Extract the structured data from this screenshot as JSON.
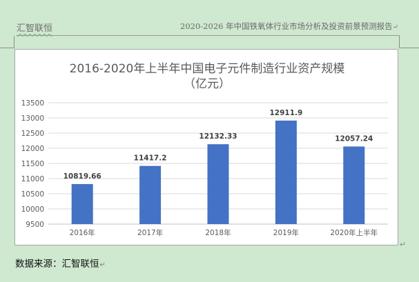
{
  "header": {
    "left": "汇智联恒",
    "right": "2020-2026 年中国铁氧体行业市场分析及投资前景预测报告",
    "mark": "↵"
  },
  "footer": {
    "source": "数据来源：汇智联恒",
    "mark": "↵"
  },
  "chart_data": {
    "type": "bar",
    "title_line1": "2016-2020年上半年中国电子元件制造行业资产规模",
    "title_line2": "（亿元）",
    "categories": [
      "2016年",
      "2017年",
      "2018年",
      "2019年",
      "2020年上半年"
    ],
    "values": [
      10819.66,
      11417.2,
      12132.33,
      12911.9,
      12057.24
    ],
    "value_labels": [
      "10819.66",
      "11417.2",
      "12132.33",
      "12911.9",
      "12057.24"
    ],
    "ylim": [
      9500,
      13500
    ],
    "yticks": [
      9500,
      10000,
      10500,
      11000,
      11500,
      12000,
      12500,
      13000,
      13500
    ],
    "grid": true,
    "bar_color": "#4472c4"
  }
}
